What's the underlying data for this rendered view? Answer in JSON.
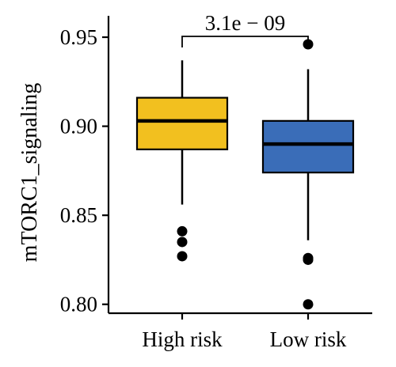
{
  "chart_data": {
    "type": "box",
    "ylabel": "mTORC1_signaling",
    "xlabel": "",
    "ylim": [
      0.795,
      0.962
    ],
    "yticks": [
      0.8,
      0.85,
      0.9,
      0.95
    ],
    "ytick_labels": [
      "0.80",
      "0.85",
      "0.90",
      "0.95"
    ],
    "categories": [
      "High risk",
      "Low risk"
    ],
    "grid": false,
    "legend": "none",
    "boxes": [
      {
        "category": "High risk",
        "color": "#F2C01F",
        "whisker_low": 0.856,
        "q1": 0.887,
        "median": 0.903,
        "q3": 0.916,
        "whisker_high": 0.937,
        "outliers": [
          0.841,
          0.835,
          0.827
        ]
      },
      {
        "category": "Low risk",
        "color": "#3A6DB8",
        "whisker_low": 0.836,
        "q1": 0.874,
        "median": 0.89,
        "q3": 0.903,
        "whisker_high": 0.932,
        "outliers": [
          0.946,
          0.826,
          0.825,
          0.8
        ]
      }
    ],
    "annotation": {
      "text": "3.1e − 09",
      "between": [
        "High risk",
        "Low risk"
      ]
    }
  }
}
